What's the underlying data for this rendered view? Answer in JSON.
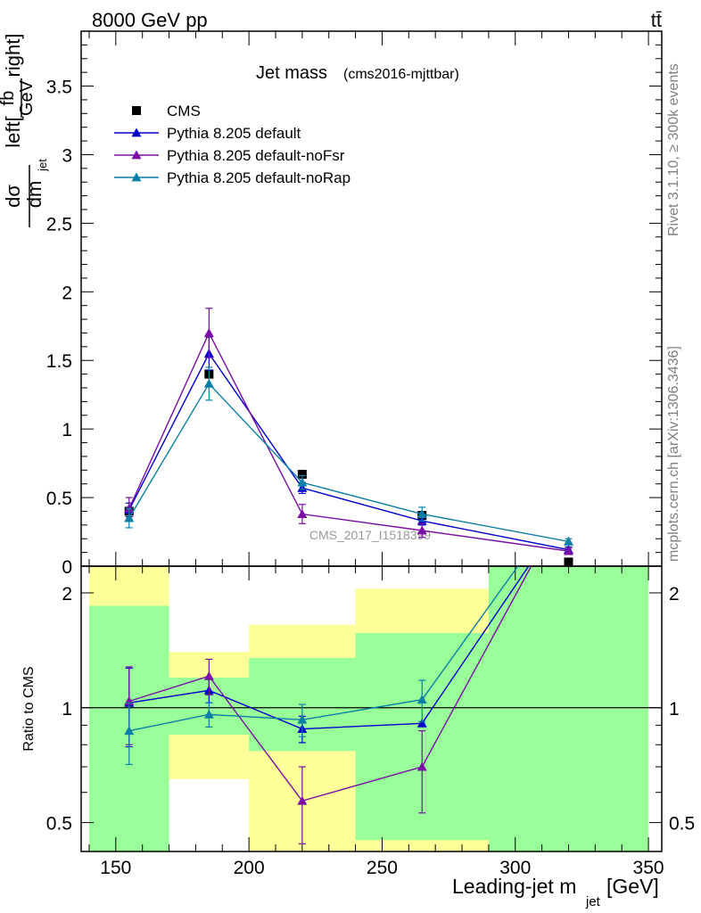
{
  "header": {
    "energy_label": "8000 GeV pp",
    "process_label": "tt̄"
  },
  "side_labels": {
    "rivet": "Rivet 3.1.10, ≥ 300k events",
    "mcplots": "mcplots.cern.ch [arXiv:1306.3436]"
  },
  "chart_data": [
    {
      "type": "line",
      "title": "Jet mass",
      "subtitle": "(cms2016-mjttbar)",
      "ylabel": "dσ/dm_jet \\left[fb/GeV\\right]",
      "ylabel_parts": {
        "num": "dσ",
        "den": "dm",
        "den_sub": "jet",
        "left": "left[",
        "frac_num": "fb",
        "frac_den": "GeV",
        "right": "right]"
      },
      "ylim": [
        0,
        3.9
      ],
      "xlim": [
        137,
        355
      ],
      "yticks": [
        0,
        0.5,
        1,
        1.5,
        2,
        2.5,
        3,
        3.5
      ],
      "ytick_labels": [
        "0",
        "0.5",
        "1",
        "1.5",
        "2",
        "2.5",
        "3",
        "3.5"
      ],
      "watermark": "CMS_2017_I1518399",
      "legend": [
        "CMS",
        "Pythia 8.205 default",
        "Pythia 8.205 default-noFsr",
        "Pythia 8.205 default-noRap"
      ],
      "legend_position": "top-left",
      "data_series": {
        "name": "CMS",
        "color": "#000000",
        "x": [
          155,
          185,
          220,
          265,
          320
        ],
        "y": [
          0.4,
          1.4,
          0.67,
          0.37,
          0.03
        ]
      },
      "series": [
        {
          "name": "Pythia 8.205 default",
          "color": "#0000cc",
          "x": [
            155,
            185,
            220,
            265,
            320
          ],
          "y": [
            0.41,
            1.55,
            0.57,
            0.33,
            0.12
          ],
          "err": [
            0.05,
            0.12,
            0.04,
            0.03,
            0.02
          ]
        },
        {
          "name": "Pythia 8.205 default-noFsr",
          "color": "#7a0ea5",
          "x": [
            155,
            185,
            220,
            265,
            320
          ],
          "y": [
            0.42,
            1.7,
            0.38,
            0.26,
            0.11
          ],
          "err": [
            0.08,
            0.18,
            0.07,
            0.05,
            0.02
          ]
        },
        {
          "name": "Pythia 8.205 default-noRap",
          "color": "#0a7fa5",
          "x": [
            155,
            185,
            220,
            265,
            320
          ],
          "y": [
            0.35,
            1.33,
            0.61,
            0.38,
            0.18
          ],
          "err": [
            0.07,
            0.12,
            0.05,
            0.05,
            0.02
          ]
        }
      ]
    },
    {
      "type": "line",
      "title": "",
      "xlabel": "Leading-jet m_jet [GeV]",
      "xlabel_parts": {
        "main": "Leading-jet m",
        "sub": "jet",
        "unit": "[GeV]"
      },
      "ylabel": "Ratio to CMS",
      "scale": "log",
      "ylim": [
        0.42,
        2.35
      ],
      "xlim": [
        137,
        355
      ],
      "xticks": [
        150,
        200,
        250,
        300,
        350
      ],
      "xtick_labels": [
        "150",
        "200",
        "250",
        "300",
        "350"
      ],
      "yticks": [
        0.5,
        1,
        2
      ],
      "ytick_labels": [
        "0.5",
        "1",
        "2"
      ],
      "reference_line": 1,
      "bins": [
        {
          "lo": 140,
          "hi": 170,
          "inner": [
            0.35,
            1.85
          ],
          "outer": [
            0.35,
            2.5
          ]
        },
        {
          "lo": 170,
          "hi": 200,
          "inner": [
            0.85,
            1.2
          ],
          "outer": [
            0.65,
            1.4
          ]
        },
        {
          "lo": 200,
          "hi": 240,
          "inner": [
            0.77,
            1.35
          ],
          "outer": [
            0.4,
            1.65
          ]
        },
        {
          "lo": 240,
          "hi": 290,
          "inner": [
            0.45,
            1.57
          ],
          "outer": [
            0.35,
            2.05
          ]
        },
        {
          "lo": 290,
          "hi": 350,
          "inner": [
            0.35,
            2.5
          ],
          "outer": [
            0.35,
            2.5
          ]
        }
      ],
      "series": [
        {
          "name": "Pythia 8.205 default",
          "color": "#0000cc",
          "x": [
            155,
            185,
            220,
            265,
            305
          ],
          "y": [
            1.03,
            1.11,
            0.88,
            0.91,
            2.35
          ],
          "err": [
            0.24,
            0.08,
            0.07,
            0.0,
            0.0
          ]
        },
        {
          "name": "Pythia 8.205 default-noFsr",
          "color": "#7a0ea5",
          "x": [
            155,
            185,
            220,
            265,
            306
          ],
          "y": [
            1.04,
            1.21,
            0.57,
            0.7,
            2.35
          ],
          "err": [
            0.24,
            0.13,
            0.13,
            0.17,
            0.0
          ]
        },
        {
          "name": "Pythia 8.205 default-noRap",
          "color": "#0a7fa5",
          "x": [
            155,
            185,
            220,
            265,
            301
          ],
          "y": [
            0.87,
            0.96,
            0.93,
            1.05,
            2.35
          ],
          "err": [
            0.16,
            0.07,
            0.09,
            0.13,
            0.0
          ]
        }
      ]
    }
  ]
}
